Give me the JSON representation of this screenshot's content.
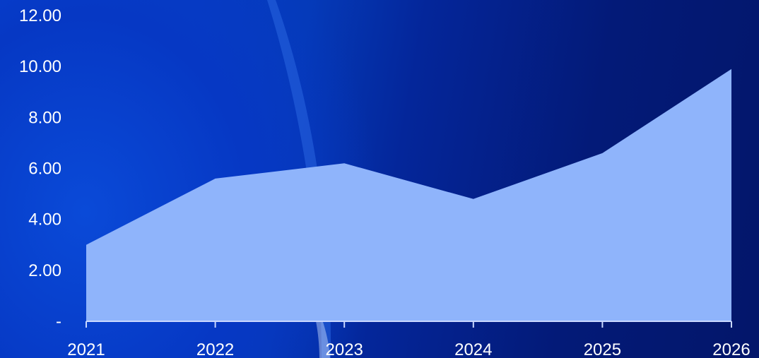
{
  "chart_data": {
    "type": "area",
    "categories": [
      "2021",
      "2022",
      "2023",
      "2024",
      "2025",
      "2026"
    ],
    "values": [
      3.0,
      5.6,
      6.2,
      4.8,
      6.6,
      9.9
    ],
    "ylim": [
      0,
      12
    ],
    "yticks": [
      "-",
      "2.00",
      "4.00",
      "6.00",
      "8.00",
      "10.00",
      "12.00"
    ],
    "grid": false,
    "colors": {
      "area": "#8fb4fb",
      "axis": "#c9d8ff",
      "text": "#ffffff"
    }
  }
}
